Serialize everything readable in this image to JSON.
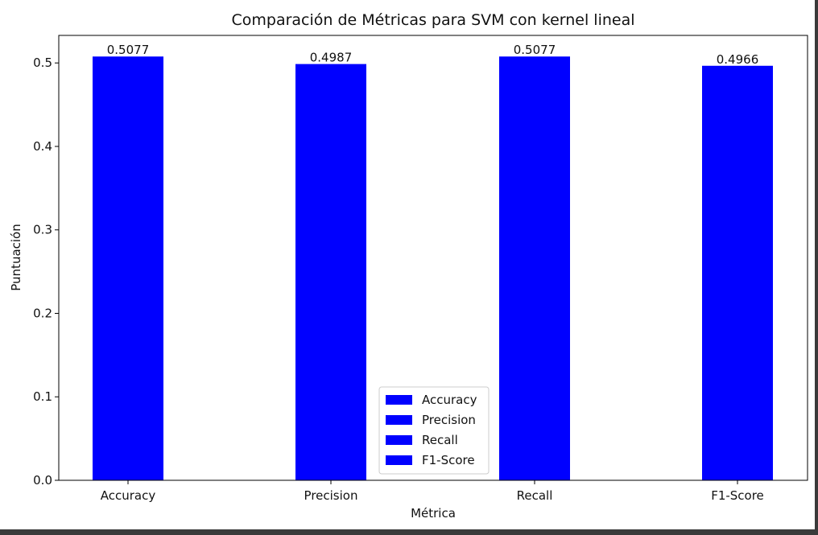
{
  "chart_data": {
    "type": "bar",
    "title": "Comparación de Métricas para SVM con kernel lineal",
    "xlabel": "Métrica",
    "ylabel": "Puntuación",
    "categories": [
      "Accuracy",
      "Precision",
      "Recall",
      "F1-Score"
    ],
    "values": [
      0.5077,
      0.4987,
      0.5077,
      0.4966
    ],
    "data_labels": [
      "0.5077",
      "0.4987",
      "0.5077",
      "0.4966"
    ],
    "ylim": [
      0,
      0.533
    ],
    "yticks": [
      0.0,
      0.1,
      0.2,
      0.3,
      0.4,
      0.5
    ],
    "ytick_labels": [
      "0.0",
      "0.1",
      "0.2",
      "0.3",
      "0.4",
      "0.5"
    ],
    "bar_color": "#0000ff",
    "grid": false,
    "legend": {
      "placement": "lower center",
      "entries": [
        "Accuracy",
        "Precision",
        "Recall",
        "F1-Score"
      ]
    }
  }
}
